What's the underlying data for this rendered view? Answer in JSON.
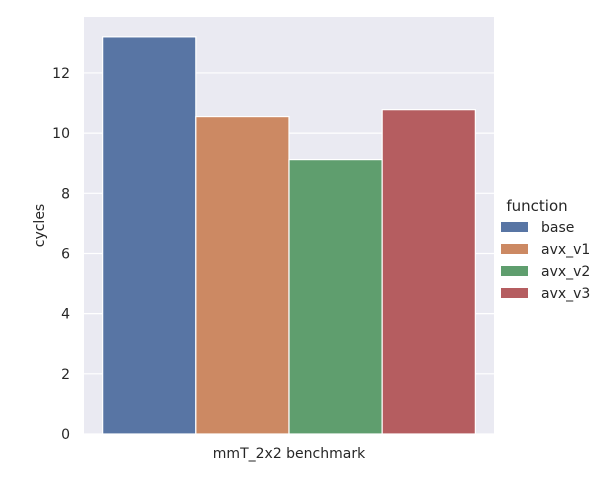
{
  "chart_data": {
    "type": "bar",
    "categories": [
      "mmT_2x2 benchmark"
    ],
    "series": [
      {
        "name": "base",
        "values": [
          13.2
        ],
        "color": "#5875a4"
      },
      {
        "name": "avx_v1",
        "values": [
          10.55
        ],
        "color": "#cc8963"
      },
      {
        "name": "avx_v2",
        "values": [
          9.12
        ],
        "color": "#5f9e6e"
      },
      {
        "name": "avx_v3",
        "values": [
          10.78
        ],
        "color": "#b55d60"
      }
    ],
    "xlabel": "",
    "ylabel": "cycles",
    "ylim": [
      0,
      13.86
    ],
    "yticks": [
      "0",
      "2",
      "4",
      "6",
      "8",
      "10",
      "12"
    ],
    "grid": true,
    "background": "#eaeaf2",
    "legend": {
      "title": "function",
      "placement": "right"
    }
  }
}
